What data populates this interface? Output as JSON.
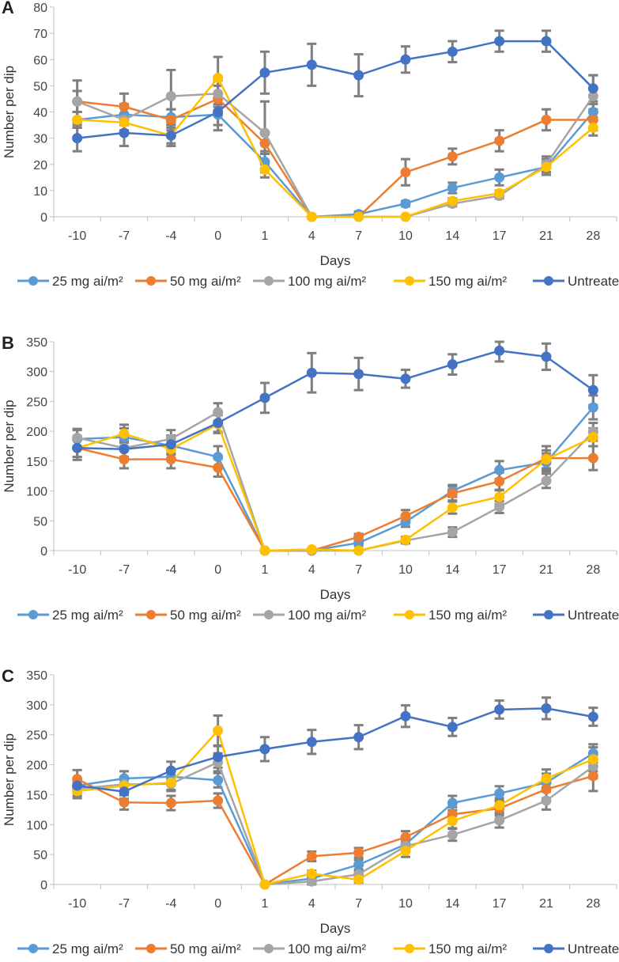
{
  "figure": {
    "panel_count": 3
  },
  "colors": {
    "25 mg ai/m²": "#5B9BD5",
    "50 mg ai/m²": "#ED7D31",
    "100 mg ai/m²": "#A5A5A5",
    "150 mg ai/m²": "#FFC000",
    "Untreated": "#4472C4",
    "error_bar": "#7F7F7F"
  },
  "chart_data": [
    {
      "panel": "A",
      "type": "line",
      "xlabel": "Days",
      "ylabel": "Number per dip",
      "categories": [
        "-10",
        "-7",
        "-4",
        "0",
        "1",
        "4",
        "7",
        "10",
        "14",
        "17",
        "21",
        "28"
      ],
      "ylim": [
        0,
        80
      ],
      "yticks": [
        0,
        10,
        20,
        30,
        40,
        50,
        60,
        70,
        80
      ],
      "series": [
        {
          "name": "25 mg ai/m²",
          "values": [
            37,
            39,
            38,
            39,
            21,
            0,
            1,
            5,
            11,
            15,
            19,
            40
          ],
          "errors": [
            3,
            4,
            3,
            4,
            4,
            0,
            1,
            1,
            2,
            3,
            3,
            3
          ]
        },
        {
          "name": "50 mg ai/m²",
          "values": [
            44,
            42,
            37,
            45,
            28,
            0,
            0,
            17,
            23,
            29,
            37,
            37
          ],
          "errors": [
            4,
            5,
            4,
            5,
            4,
            0,
            0,
            5,
            3,
            4,
            4,
            4
          ]
        },
        {
          "name": "100 mg ai/m²",
          "values": [
            44,
            37,
            46,
            47,
            32,
            0,
            0,
            0,
            5,
            8,
            20,
            46
          ],
          "errors": [
            8,
            5,
            10,
            5,
            12,
            0,
            0,
            0,
            1,
            1,
            3,
            8
          ]
        },
        {
          "name": "150 mg ai/m²",
          "values": [
            37,
            36,
            31,
            53,
            18,
            0,
            0,
            0,
            6,
            9,
            19,
            34
          ],
          "errors": [
            3,
            3,
            3,
            8,
            3,
            0,
            0,
            0,
            1,
            1,
            2,
            3
          ]
        },
        {
          "name": "Untreated",
          "values": [
            30,
            32,
            31,
            40,
            55,
            58,
            54,
            60,
            63,
            67,
            67,
            49
          ],
          "errors": [
            5,
            5,
            4,
            7,
            8,
            8,
            8,
            5,
            4,
            4,
            4,
            5
          ]
        }
      ]
    },
    {
      "panel": "B",
      "type": "line",
      "xlabel": "Days",
      "ylabel": "Number per dip",
      "categories": [
        "-10",
        "-7",
        "-4",
        "0",
        "1",
        "4",
        "7",
        "10",
        "14",
        "17",
        "21",
        "28"
      ],
      "ylim": [
        0,
        350
      ],
      "yticks": [
        0,
        50,
        100,
        150,
        200,
        250,
        300,
        350
      ],
      "series": [
        {
          "name": "25 mg ai/m²",
          "values": [
            187,
            190,
            176,
            157,
            0,
            0,
            13,
            48,
            100,
            135,
            148,
            240
          ],
          "errors": [
            15,
            15,
            15,
            18,
            0,
            0,
            5,
            8,
            10,
            15,
            15,
            20
          ]
        },
        {
          "name": "50 mg ai/m²",
          "values": [
            172,
            153,
            153,
            139,
            0,
            0,
            23,
            58,
            96,
            116,
            155,
            155
          ],
          "errors": [
            20,
            15,
            15,
            15,
            0,
            0,
            5,
            10,
            12,
            15,
            20,
            20
          ]
        },
        {
          "name": "100 mg ai/m²",
          "values": [
            189,
            172,
            187,
            232,
            0,
            0,
            0,
            17,
            31,
            73,
            117,
            199
          ],
          "errors": [
            15,
            15,
            15,
            15,
            0,
            0,
            0,
            5,
            8,
            10,
            12,
            15
          ]
        },
        {
          "name": "150 mg ai/m²",
          "values": [
            172,
            196,
            170,
            212,
            0,
            2,
            0,
            18,
            72,
            90,
            153,
            190
          ],
          "errors": [
            15,
            15,
            15,
            15,
            0,
            2,
            0,
            5,
            10,
            12,
            15,
            15
          ]
        },
        {
          "name": "Untreated",
          "values": [
            172,
            170,
            178,
            214,
            256,
            298,
            296,
            288,
            312,
            335,
            325,
            269
          ],
          "errors": [
            15,
            15,
            15,
            15,
            25,
            33,
            27,
            15,
            17,
            18,
            22,
            25
          ]
        }
      ]
    },
    {
      "panel": "C",
      "type": "line",
      "xlabel": "Days",
      "ylabel": "Number per dip",
      "categories": [
        "-10",
        "-7",
        "-4",
        "0",
        "1",
        "4",
        "7",
        "10",
        "14",
        "17",
        "21",
        "28"
      ],
      "ylim": [
        0,
        350
      ],
      "yticks": [
        0,
        50,
        100,
        150,
        200,
        250,
        300,
        350
      ],
      "series": [
        {
          "name": "25 mg ai/m²",
          "values": [
            165,
            177,
            180,
            174,
            0,
            10,
            33,
            67,
            136,
            152,
            170,
            219
          ],
          "errors": [
            12,
            12,
            12,
            12,
            0,
            5,
            8,
            10,
            12,
            12,
            15,
            15
          ]
        },
        {
          "name": "50 mg ai/m²",
          "values": [
            176,
            137,
            136,
            140,
            0,
            47,
            53,
            79,
            117,
            127,
            159,
            181
          ],
          "errors": [
            15,
            12,
            12,
            12,
            0,
            8,
            8,
            10,
            12,
            12,
            15,
            25
          ]
        },
        {
          "name": "100 mg ai/m²",
          "values": [
            160,
            167,
            168,
            204,
            0,
            5,
            17,
            64,
            83,
            107,
            140,
            197
          ],
          "errors": [
            12,
            12,
            12,
            15,
            0,
            5,
            5,
            10,
            10,
            12,
            15,
            20
          ]
        },
        {
          "name": "150 mg ai/m²",
          "values": [
            156,
            165,
            170,
            257,
            0,
            18,
            8,
            56,
            106,
            132,
            177,
            209
          ],
          "errors": [
            12,
            12,
            12,
            25,
            0,
            5,
            5,
            10,
            12,
            12,
            15,
            20
          ]
        },
        {
          "name": "Untreated",
          "values": [
            165,
            155,
            190,
            213,
            226,
            238,
            246,
            281,
            263,
            292,
            294,
            280
          ],
          "errors": [
            12,
            12,
            15,
            18,
            20,
            20,
            20,
            18,
            15,
            15,
            18,
            15
          ]
        }
      ]
    }
  ]
}
